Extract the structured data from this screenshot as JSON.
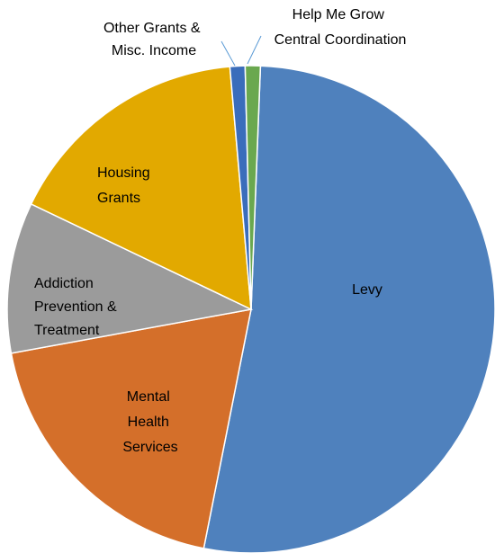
{
  "chart_data": {
    "type": "pie",
    "title": "",
    "slices": [
      {
        "label": "Levy",
        "value": 52.5,
        "color": "#4f81bd"
      },
      {
        "label": "Mental Health Services",
        "value": 19.0,
        "color": "#d46f2a"
      },
      {
        "label": "Addiction Prevention & Treatment",
        "value": 10.0,
        "color": "#9b9b9b"
      },
      {
        "label": "Housing Grants",
        "value": 16.5,
        "color": "#e2a900"
      },
      {
        "label": "Other Grants & Misc. Income",
        "value": 1.0,
        "color": "#3a6dbb"
      },
      {
        "label": "Help Me Grow Central Coordination",
        "value": 1.0,
        "color": "#6aa84f"
      }
    ],
    "legend": "none",
    "label_lines": {
      "levy": [
        "Levy"
      ],
      "mental": [
        "Mental",
        "Health",
        "Services"
      ],
      "addiction": [
        "Addiction",
        "Prevention &",
        "Treatment"
      ],
      "housing": [
        "Housing",
        "Grants"
      ],
      "other": [
        "Other Grants &",
        "Misc. Income"
      ],
      "help": [
        "Help Me Grow",
        "Central Coordination"
      ]
    }
  }
}
